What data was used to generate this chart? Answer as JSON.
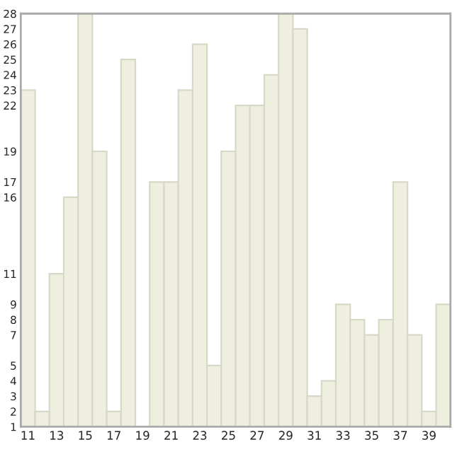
{
  "chart_data": {
    "type": "bar",
    "categories": [
      "11",
      null,
      "13",
      null,
      "15",
      null,
      "17",
      null,
      "19",
      null,
      "21",
      null,
      "23",
      null,
      "25",
      null,
      "27",
      null,
      "29",
      null,
      "31",
      null,
      "33",
      null,
      "35",
      null,
      "37",
      null,
      "39",
      null
    ],
    "values": [
      23,
      2,
      11,
      16,
      28,
      19,
      2,
      25,
      1,
      17,
      17,
      23,
      26,
      5,
      19,
      22,
      22,
      24,
      28,
      27,
      3,
      4,
      9,
      8,
      7,
      8,
      17,
      7,
      2,
      9
    ],
    "color": "#efefdf",
    "ylim": [
      1,
      28
    ],
    "yticks": [
      1,
      2,
      3,
      4,
      5,
      7,
      8,
      9,
      11,
      16,
      17,
      19,
      22,
      23,
      24,
      25,
      26,
      27,
      28
    ],
    "grid": false
  }
}
